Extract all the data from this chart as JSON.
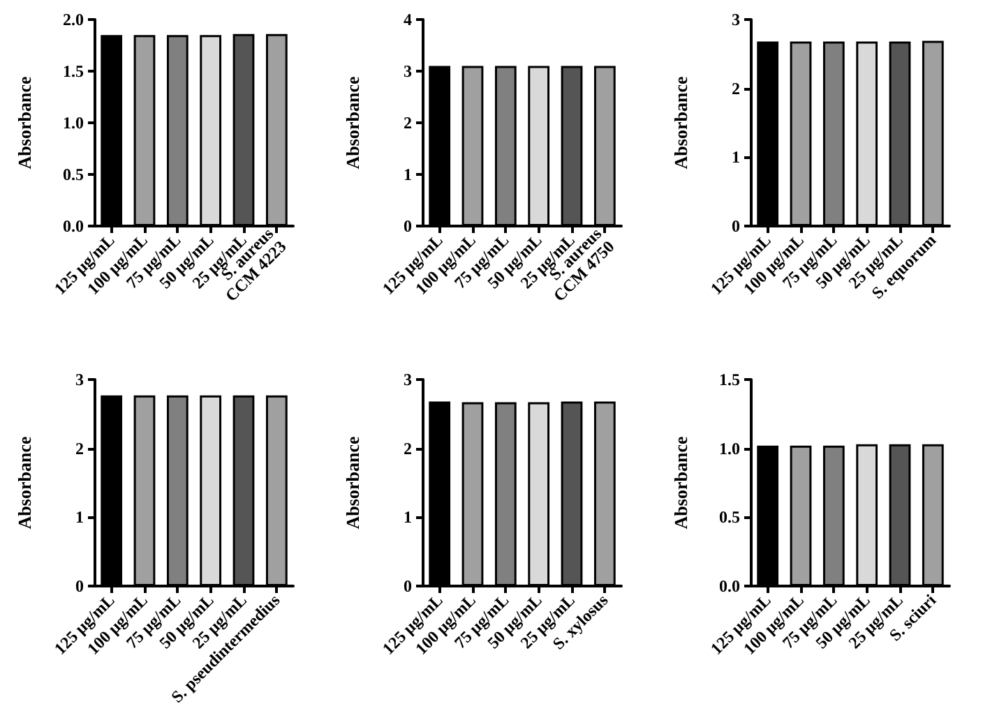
{
  "chart_data": [
    {
      "type": "bar",
      "categories": [
        "125 μg/mL",
        "100 μg/mL",
        "75 μg/mL",
        "50 μg/mL",
        "25 μg/mL",
        "S. aureus\nCCM 4223"
      ],
      "values": [
        1.85,
        1.85,
        1.85,
        1.85,
        1.86,
        1.86
      ],
      "colors": [
        "#000000",
        "#a0a0a0",
        "#808080",
        "#d9d9d9",
        "#555555",
        "#a0a0a0"
      ],
      "ylabel": "Absorbance",
      "ylim": [
        0,
        2
      ],
      "yticks": [
        {
          "value": 0,
          "label": "0.0"
        },
        {
          "value": 0.5,
          "label": "0.5"
        },
        {
          "value": 1,
          "label": "1.0"
        },
        {
          "value": 1.5,
          "label": "1.5"
        },
        {
          "value": 2,
          "label": "2.0"
        }
      ],
      "grid": false
    },
    {
      "type": "bar",
      "categories": [
        "125 μg/mL",
        "100 μg/mL",
        "75 μg/mL",
        "50 μg/mL",
        "25 μg/mL",
        "S. aureus\nCCM 4750"
      ],
      "values": [
        3.1,
        3.1,
        3.1,
        3.1,
        3.1,
        3.1
      ],
      "colors": [
        "#000000",
        "#a0a0a0",
        "#808080",
        "#d9d9d9",
        "#555555",
        "#a0a0a0"
      ],
      "ylabel": "Absorbance",
      "ylim": [
        0,
        4
      ],
      "yticks": [
        0,
        1,
        2,
        3,
        4
      ],
      "grid": false
    },
    {
      "type": "bar",
      "categories": [
        "125 μg/mL",
        "100 μg/mL",
        "75 μg/mL",
        "50 μg/mL",
        "25 μg/mL",
        "S. equorum"
      ],
      "values": [
        2.68,
        2.68,
        2.68,
        2.68,
        2.68,
        2.69
      ],
      "colors": [
        "#000000",
        "#a0a0a0",
        "#808080",
        "#d9d9d9",
        "#555555",
        "#a0a0a0"
      ],
      "ylabel": "Absorbance",
      "ylim": [
        0,
        3
      ],
      "yticks": [
        0,
        1,
        2,
        3
      ],
      "grid": false
    },
    {
      "type": "bar",
      "categories": [
        "125 μg/mL",
        "100 μg/mL",
        "75 μg/mL",
        "50 μg/mL",
        "25 μg/mL",
        "S. pseudintermedius"
      ],
      "values": [
        2.77,
        2.77,
        2.77,
        2.77,
        2.77,
        2.77
      ],
      "colors": [
        "#000000",
        "#a0a0a0",
        "#808080",
        "#d9d9d9",
        "#555555",
        "#a0a0a0"
      ],
      "ylabel": "Absorbance",
      "ylim": [
        0,
        3
      ],
      "yticks": [
        0,
        1,
        2,
        3
      ],
      "grid": false
    },
    {
      "type": "bar",
      "categories": [
        "125 μg/mL",
        "100 μg/mL",
        "75 μg/mL",
        "50 μg/mL",
        "25 μg/mL",
        "S. xylosus"
      ],
      "values": [
        2.68,
        2.67,
        2.67,
        2.67,
        2.68,
        2.68
      ],
      "colors": [
        "#000000",
        "#a0a0a0",
        "#808080",
        "#d9d9d9",
        "#555555",
        "#a0a0a0"
      ],
      "ylabel": "Absorbance",
      "ylim": [
        0,
        3
      ],
      "yticks": [
        0,
        1,
        2,
        3
      ],
      "grid": false
    },
    {
      "type": "bar",
      "categories": [
        "125 μg/mL",
        "100 μg/mL",
        "75 μg/mL",
        "50 μg/mL",
        "25 μg/mL",
        "S. sciuri"
      ],
      "values": [
        1.02,
        1.02,
        1.02,
        1.03,
        1.03,
        1.03
      ],
      "colors": [
        "#000000",
        "#a0a0a0",
        "#808080",
        "#d9d9d9",
        "#555555",
        "#a0a0a0"
      ],
      "ylabel": "Absorbance",
      "ylim": [
        0,
        1.5
      ],
      "yticks": [
        {
          "value": 0,
          "label": "0.0"
        },
        {
          "value": 0.5,
          "label": "0.5"
        },
        {
          "value": 1,
          "label": "1.0"
        },
        {
          "value": 1.5,
          "label": "1.5"
        }
      ],
      "grid": false
    }
  ]
}
